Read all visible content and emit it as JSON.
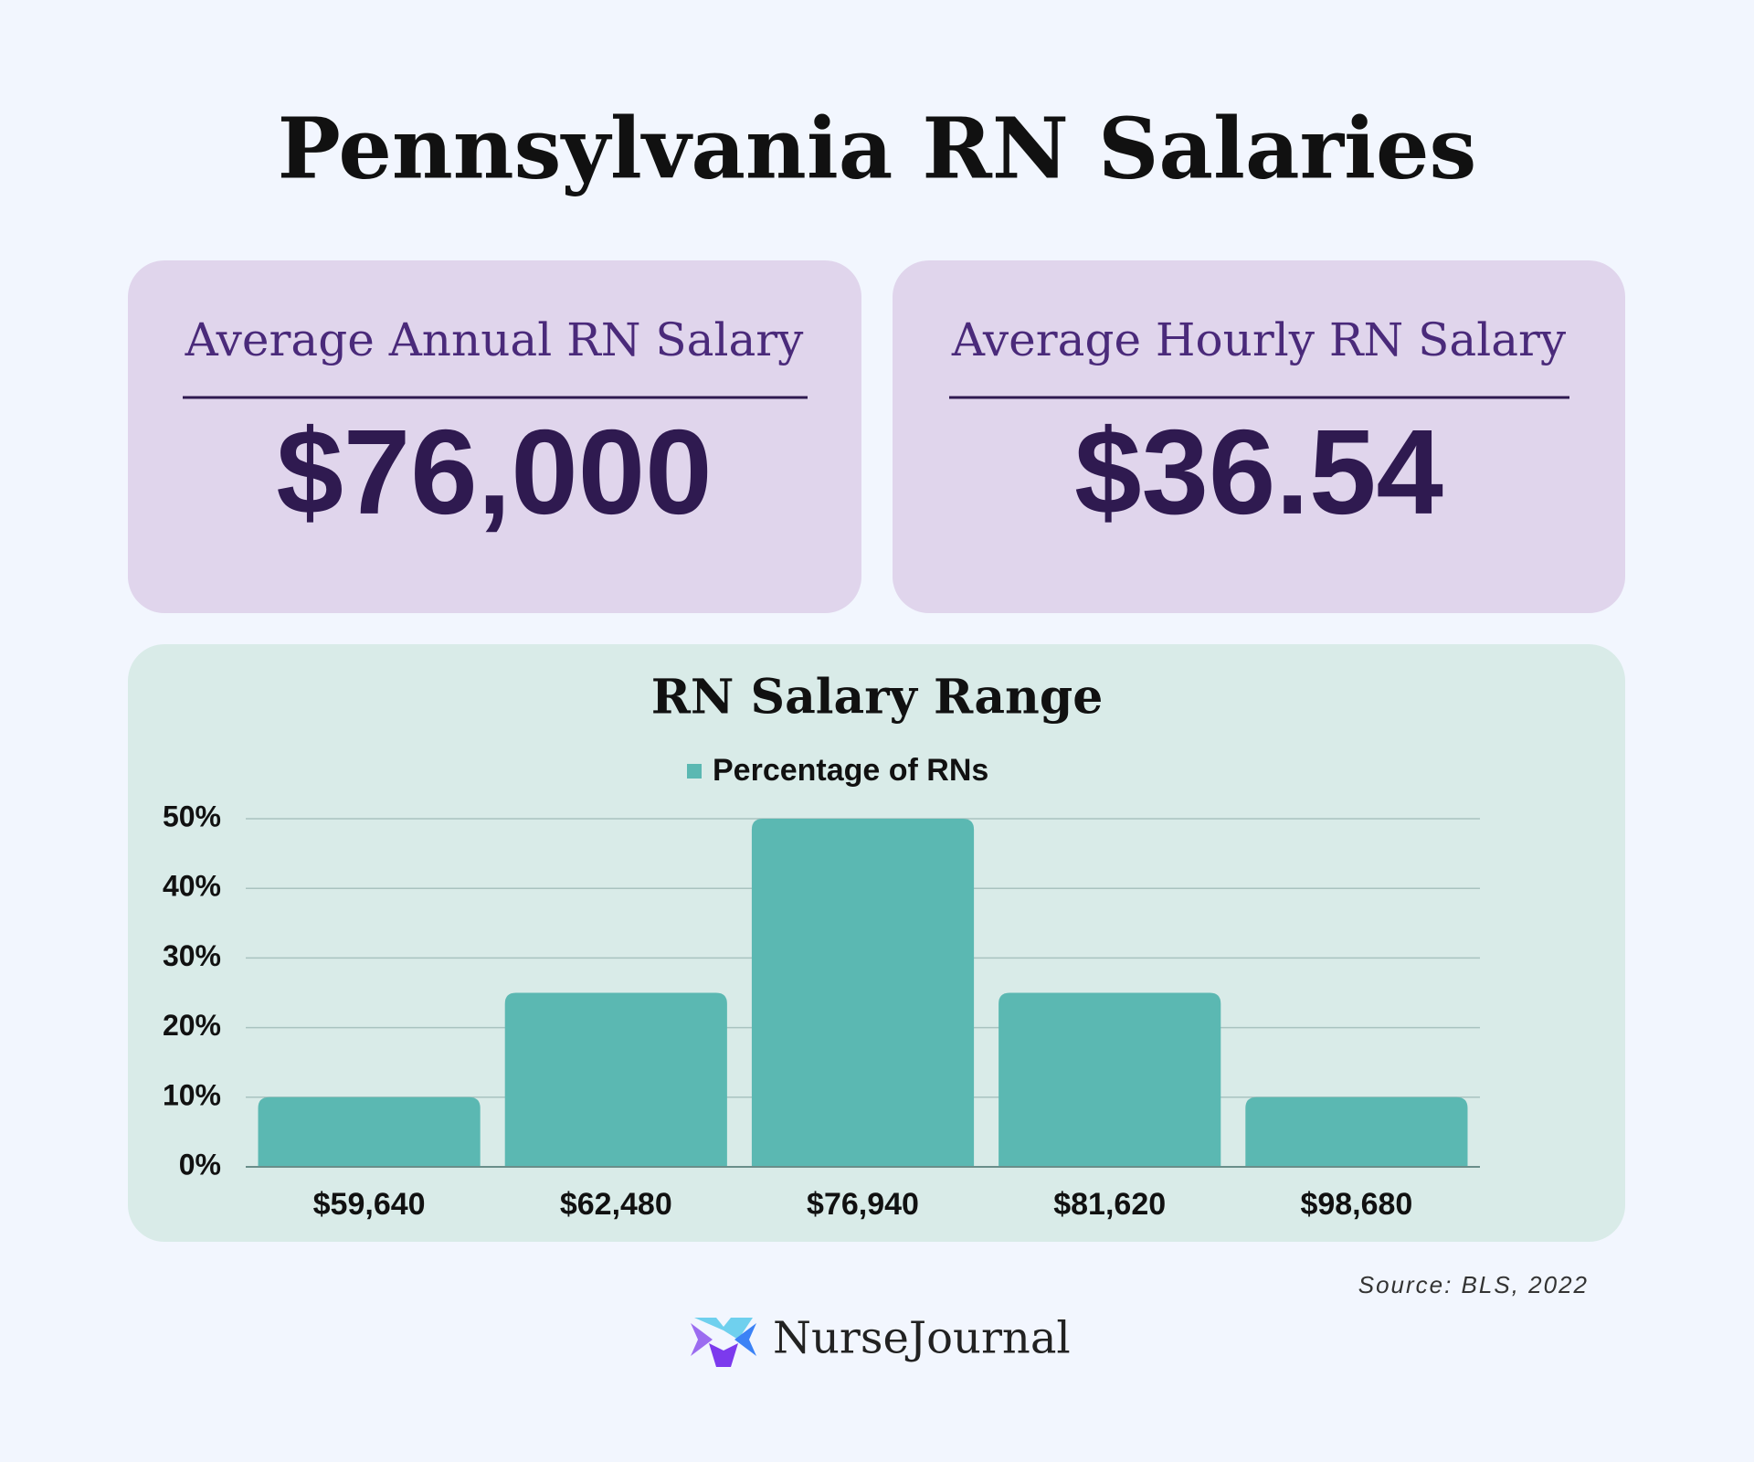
{
  "title": "Pennsylvania RN Salaries",
  "cards": [
    {
      "label": "Average Annual RN Salary",
      "value": "$76,000"
    },
    {
      "label": "Average Hourly RN Salary",
      "value": "$36.54"
    }
  ],
  "chart_data": {
    "type": "bar",
    "title": "RN Salary Range",
    "categories": [
      "$59,640",
      "$62,480",
      "$76,940",
      "$81,620",
      "$98,680"
    ],
    "series": [
      {
        "name": "Percentage of RNs",
        "color": "#5bb8b2",
        "values": [
          10,
          25,
          50,
          25,
          10
        ]
      }
    ],
    "ylim": [
      0,
      50
    ],
    "yticks": [
      {
        "value": 0,
        "label": "0%"
      },
      {
        "value": 10,
        "label": "10%"
      },
      {
        "value": 20,
        "label": "20%"
      },
      {
        "value": 30,
        "label": "30%"
      },
      {
        "value": 40,
        "label": "40%"
      },
      {
        "value": 50,
        "label": "50%"
      }
    ],
    "grid": true
  },
  "source": "Source: BLS, 2022",
  "brand": "NurseJournal"
}
